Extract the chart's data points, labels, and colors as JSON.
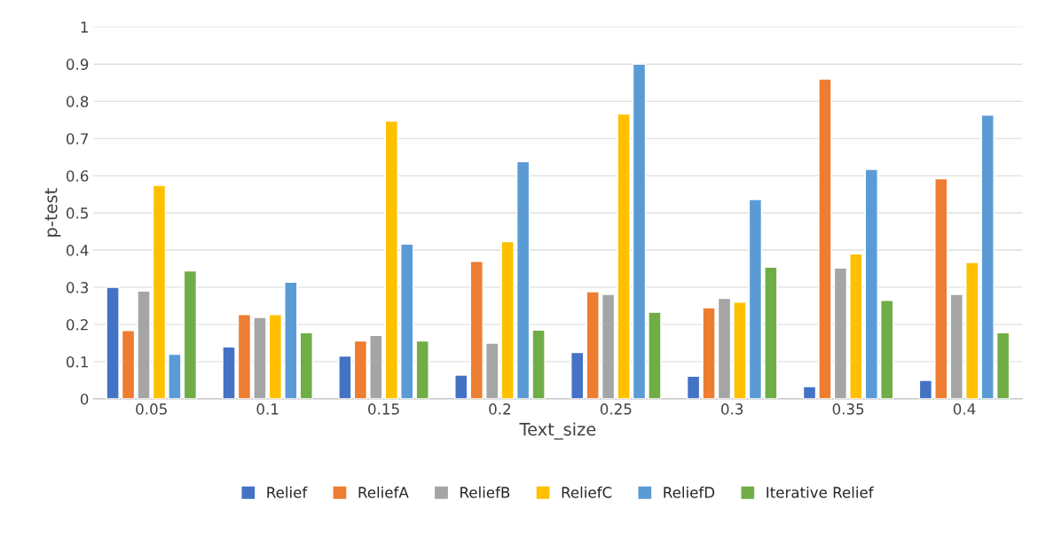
{
  "chart_data": {
    "type": "bar",
    "xlabel": "Text_size",
    "ylabel": "p-test",
    "categories": [
      "0.05",
      "0.1",
      "0.15",
      "0.2",
      "0.25",
      "0.3",
      "0.35",
      "0.4"
    ],
    "series": [
      {
        "name": "Relief",
        "color": "#4472c4",
        "values": [
          0.3,
          0.14,
          0.115,
          0.064,
          0.125,
          0.061,
          0.033,
          0.05
        ]
      },
      {
        "name": "ReliefA",
        "color": "#ed7d31",
        "values": [
          0.184,
          0.227,
          0.156,
          0.37,
          0.288,
          0.245,
          0.86,
          0.592
        ]
      },
      {
        "name": "ReliefB",
        "color": "#a5a5a5",
        "values": [
          0.29,
          0.219,
          0.171,
          0.15,
          0.281,
          0.27,
          0.352,
          0.281
        ]
      },
      {
        "name": "ReliefC",
        "color": "#ffc000",
        "values": [
          0.574,
          0.227,
          0.747,
          0.423,
          0.766,
          0.26,
          0.39,
          0.367
        ]
      },
      {
        "name": "ReliefD",
        "color": "#5b9bd5",
        "values": [
          0.12,
          0.314,
          0.416,
          0.638,
          0.9,
          0.536,
          0.617,
          0.763
        ]
      },
      {
        "name": "Iterative Relief",
        "color": "#70ad47",
        "values": [
          0.344,
          0.178,
          0.156,
          0.185,
          0.233,
          0.354,
          0.265,
          0.178
        ]
      }
    ],
    "ylim": [
      0,
      1
    ],
    "yticks": [
      0,
      0.1,
      0.2,
      0.3,
      0.4,
      0.5,
      0.6,
      0.7,
      0.8,
      0.9,
      1
    ],
    "grid": "y",
    "legend": "bottom"
  }
}
